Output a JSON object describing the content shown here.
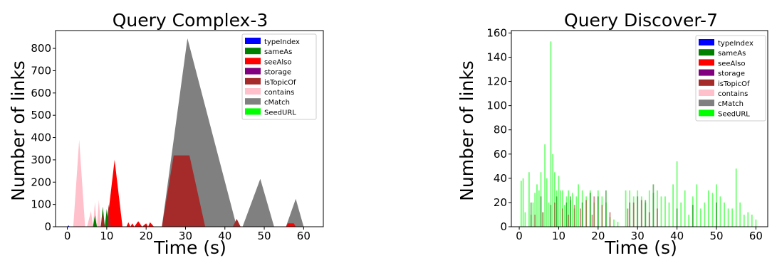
{
  "chart_data": [
    {
      "type": "area",
      "title": "Query Complex-3",
      "xlabel": "Time (s)",
      "ylabel": "Number of links",
      "xlim": [
        -3,
        65
      ],
      "ylim": [
        0,
        880
      ],
      "xticks": [
        0,
        10,
        20,
        30,
        40,
        50,
        60
      ],
      "yticks": [
        0,
        100,
        200,
        300,
        400,
        500,
        600,
        700,
        800
      ],
      "legend_position": "top-right",
      "legend": [
        {
          "name": "typeIndex",
          "color": "#0000ff"
        },
        {
          "name": "sameAs",
          "color": "#008000"
        },
        {
          "name": "seeAlso",
          "color": "#ff0000"
        },
        {
          "name": "storage",
          "color": "#800080"
        },
        {
          "name": "isTopicOf",
          "color": "#a52a2a"
        },
        {
          "name": "contains",
          "color": "#ffc0cb"
        },
        {
          "name": "cMatch",
          "color": "#808080"
        },
        {
          "name": "SeedURL",
          "color": "#00ff00"
        }
      ],
      "series": [
        {
          "name": "cMatch",
          "color": "#808080",
          "x": [
            24,
            30.5,
            43,
            44.5,
            49,
            52.5,
            55.5,
            58,
            60
          ],
          "y": [
            0,
            845,
            0,
            0,
            215,
            0,
            0,
            125,
            0
          ]
        },
        {
          "name": "isTopicOf",
          "color": "#a52a2a",
          "x": [
            24,
            27,
            31,
            35,
            40,
            42,
            43,
            44,
            45
          ],
          "y": [
            0,
            320,
            320,
            0,
            0,
            0,
            35,
            0,
            0
          ]
        },
        {
          "name": "contains",
          "color": "#ffc0cb",
          "x": [
            1.5,
            3,
            4.5,
            5,
            6,
            6.5,
            7,
            7.5,
            8,
            8.5,
            9,
            9.5,
            10,
            10.5,
            11
          ],
          "y": [
            0,
            390,
            0,
            0,
            70,
            0,
            110,
            0,
            120,
            0,
            90,
            0,
            40,
            0,
            0
          ]
        },
        {
          "name": "seeAlso",
          "color": "#ff0000",
          "x": [
            10,
            12,
            14,
            15,
            15.5,
            16,
            16.5,
            17,
            18,
            19,
            20,
            20.5,
            21,
            22,
            55.5,
            56,
            57.5,
            58
          ],
          "y": [
            0,
            300,
            0,
            0,
            20,
            0,
            15,
            0,
            25,
            0,
            15,
            0,
            20,
            0,
            0,
            15,
            15,
            0
          ]
        },
        {
          "name": "sameAs",
          "color": "#008000",
          "x": [
            6.5,
            7,
            7.5,
            8.5,
            9,
            9.5,
            10,
            10.5
          ],
          "y": [
            0,
            50,
            0,
            0,
            90,
            0,
            80,
            0
          ]
        },
        {
          "name": "isTopicOf",
          "color": "#a52a2a",
          "x": [
            8.5,
            9,
            9.5,
            10,
            10.5,
            11,
            11.5
          ],
          "y": [
            0,
            60,
            0,
            0,
            100,
            0,
            0
          ]
        },
        {
          "name": "typeIndex",
          "color": "#0000ff",
          "x": [
            0,
            0.3,
            0.6
          ],
          "y": [
            0,
            6,
            0
          ]
        }
      ]
    },
    {
      "type": "bar",
      "title": "Query Discover-7",
      "xlabel": "Time (s)",
      "ylabel": "Number of links",
      "xlim": [
        -2,
        63
      ],
      "ylim": [
        0,
        162
      ],
      "xticks": [
        0,
        10,
        20,
        30,
        40,
        50,
        60
      ],
      "yticks": [
        0,
        20,
        40,
        60,
        80,
        100,
        120,
        140,
        160
      ],
      "legend_position": "top-right",
      "legend": [
        {
          "name": "typeIndex",
          "color": "#0000ff"
        },
        {
          "name": "sameAs",
          "color": "#008000"
        },
        {
          "name": "seeAlso",
          "color": "#ff0000"
        },
        {
          "name": "storage",
          "color": "#800080"
        },
        {
          "name": "isTopicOf",
          "color": "#a52a2a"
        },
        {
          "name": "contains",
          "color": "#ffc0cb"
        },
        {
          "name": "cMatch",
          "color": "#808080"
        },
        {
          "name": "SeedURL",
          "color": "#00ff00"
        }
      ],
      "series": [
        {
          "name": "SeedURL",
          "color": "#00ff00",
          "x": [
            0.5,
            1,
            1.5,
            2.5,
            3,
            3.5,
            4,
            4.5,
            5,
            5.5,
            6,
            6.5,
            7,
            7.5,
            8,
            8.5,
            9,
            9.5,
            10,
            10.5,
            11,
            11.5,
            12,
            12.5,
            13,
            13.5,
            14,
            14.5,
            15,
            16,
            17,
            18,
            19,
            20,
            21,
            22,
            23,
            24,
            25,
            27,
            28,
            29,
            30,
            31,
            32,
            33,
            34,
            35,
            36,
            37,
            38,
            39,
            40,
            41,
            42,
            43,
            44,
            45,
            46,
            47,
            48,
            49,
            50,
            51,
            52,
            53,
            54,
            55,
            56,
            57,
            58,
            59,
            60
          ],
          "y": [
            38,
            40,
            12,
            45,
            10,
            20,
            28,
            35,
            30,
            45,
            12,
            68,
            40,
            20,
            153,
            60,
            45,
            30,
            42,
            30,
            30,
            18,
            25,
            30,
            22,
            28,
            15,
            25,
            35,
            30,
            25,
            30,
            20,
            30,
            25,
            20,
            8,
            6,
            4,
            30,
            30,
            25,
            30,
            25,
            20,
            30,
            28,
            30,
            25,
            25,
            20,
            35,
            54,
            20,
            30,
            10,
            25,
            35,
            15,
            20,
            30,
            28,
            35,
            25,
            20,
            15,
            15,
            48,
            20,
            10,
            12,
            10,
            6
          ]
        },
        {
          "name": "sameAs",
          "color": "#008000",
          "x": [
            3,
            5.5,
            8,
            9.5,
            12,
            13,
            16,
            18,
            20,
            22,
            28,
            30,
            32,
            34,
            40,
            44,
            50
          ],
          "y": [
            20,
            25,
            18,
            25,
            20,
            25,
            20,
            28,
            25,
            30,
            20,
            25,
            22,
            35,
            15,
            18,
            20
          ]
        },
        {
          "name": "isTopicOf",
          "color": "#a52a2a",
          "x": [
            4,
            6,
            9,
            11,
            12.5,
            14,
            15.5,
            17,
            18.5,
            19,
            21,
            23,
            27.5,
            29,
            31,
            33,
            35
          ],
          "y": [
            10,
            12,
            20,
            15,
            10,
            18,
            15,
            22,
            10,
            25,
            18,
            12,
            15,
            20,
            22,
            12,
            15
          ]
        }
      ]
    }
  ]
}
